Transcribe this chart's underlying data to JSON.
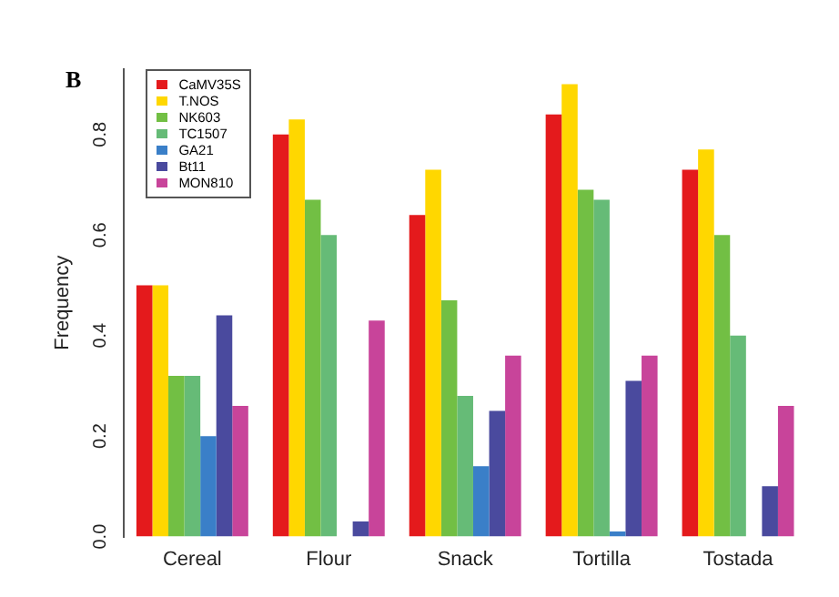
{
  "chart_data": {
    "type": "bar",
    "ylabel": "Frequency",
    "annotations": [
      "B"
    ],
    "categories": [
      "Cereal",
      "Flour",
      "Snack",
      "Tortilla",
      "Tostada"
    ],
    "series": [
      {
        "name": "CaMV35S",
        "color": "#e41a1c",
        "values": [
          0.5,
          0.8,
          0.64,
          0.84,
          0.73
        ]
      },
      {
        "name": "T.NOS",
        "color": "#ffd700",
        "values": [
          0.5,
          0.83,
          0.73,
          0.9,
          0.77
        ]
      },
      {
        "name": "NK603",
        "color": "#72bf44",
        "values": [
          0.32,
          0.67,
          0.47,
          0.69,
          0.6
        ]
      },
      {
        "name": "TC1507",
        "color": "#66bb77",
        "values": [
          0.32,
          0.6,
          0.28,
          0.67,
          0.4
        ]
      },
      {
        "name": "GA21",
        "color": "#3a7fc8",
        "values": [
          0.2,
          0,
          0.14,
          0.01,
          0
        ]
      },
      {
        "name": "Bt11",
        "color": "#4a4a9e",
        "values": [
          0.44,
          0.03,
          0.25,
          0.31,
          0.1
        ]
      },
      {
        "name": "MON810",
        "color": "#c8449a",
        "values": [
          0.26,
          0.43,
          0.36,
          0.36,
          0.26
        ]
      }
    ],
    "ylim": [
      0,
      0.93
    ],
    "yticks": [
      {
        "value": 0,
        "label": "0.0"
      },
      {
        "value": 0.2,
        "label": "0.2"
      },
      {
        "value": 0.4,
        "label": "0.4"
      },
      {
        "value": 0.6,
        "label": "0.6"
      },
      {
        "value": 0.8,
        "label": "0.8"
      }
    ],
    "grid": false,
    "legend": "top left"
  }
}
